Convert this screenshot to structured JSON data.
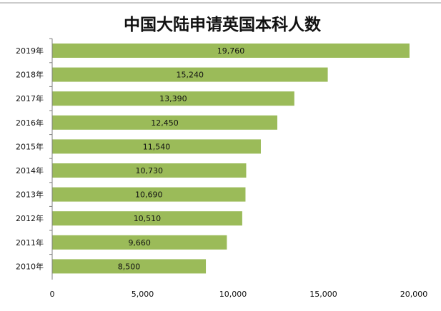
{
  "chart_data": {
    "type": "bar",
    "orientation": "horizontal",
    "title": "中国大陆申请英国本科人数",
    "categories": [
      "2019年",
      "2018年",
      "2017年",
      "2016年",
      "2015年",
      "2014年",
      "2013年",
      "2012年",
      "2011年",
      "2010年"
    ],
    "values": [
      19760,
      15240,
      13390,
      12450,
      11540,
      10730,
      10690,
      10510,
      9660,
      8500
    ],
    "data_labels": [
      "19,760",
      "15,240",
      "13,390",
      "12,450",
      "11,540",
      "10,730",
      "10,690",
      "10,510",
      "9,660",
      "8,500"
    ],
    "x_ticks": [
      0,
      5000,
      10000,
      15000,
      20000
    ],
    "x_tick_labels": [
      "0",
      "5,000",
      "10,000",
      "15,000",
      "20,000"
    ],
    "xlim": [
      0,
      20000
    ],
    "xlabel": "",
    "ylabel": "",
    "grid": false,
    "legend": "none",
    "bar_color": "#9bbb59",
    "axis_color": "#7f7f7f"
  }
}
